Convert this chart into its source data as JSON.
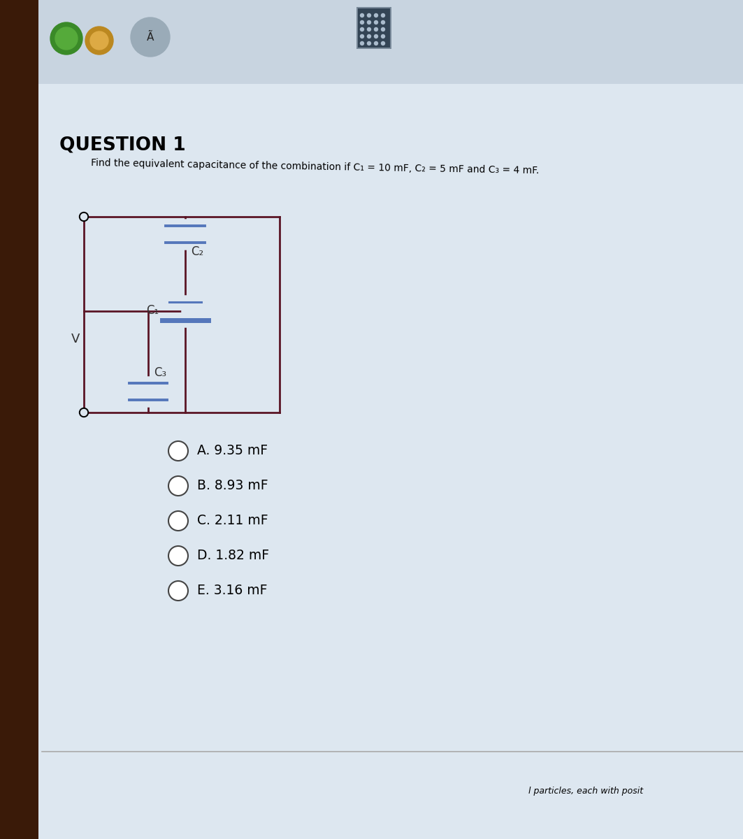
{
  "title": "QUESTION 1",
  "subtitle": "Find the equivalent capacitance of the combination if C₁ = 10 mF, C₂ = 5 mF and C₃ = 4 mF.",
  "bg_color": "#e8edf2",
  "paper_color": "#dce6ee",
  "circuit_color": "#5a1525",
  "cap_color": "#5577bb",
  "left_edge_color": "#3a1a08",
  "options": [
    "A. 9.35 mF",
    "B. 8.93 mF",
    "C. 2.11 mF",
    "D. 1.82 mF",
    "E. 3.16 mF"
  ],
  "footer_text": "l particles, each with posit",
  "label_C1": "C₁",
  "label_C2": "C₂",
  "label_C3": "C₃",
  "label_V": "V",
  "separator_color": "#aaaaaa"
}
